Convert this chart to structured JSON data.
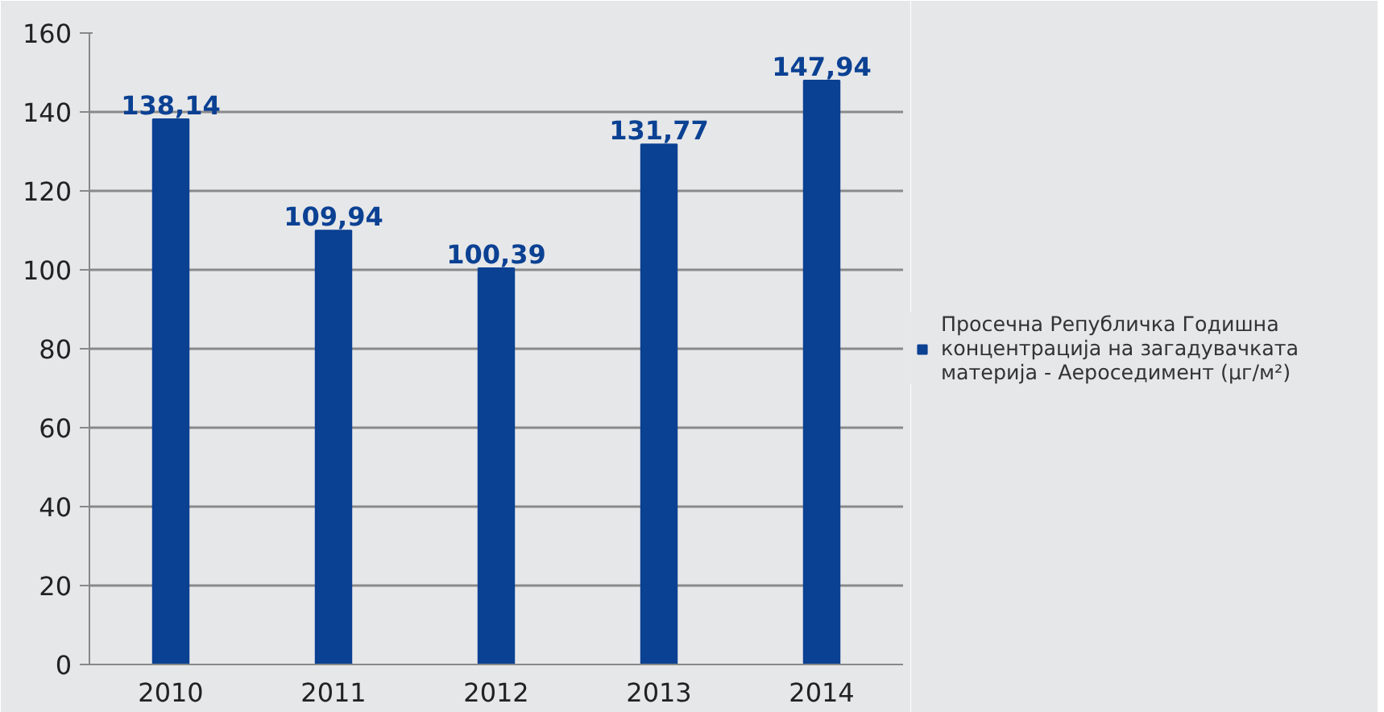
{
  "chart_data": {
    "type": "bar",
    "categories": [
      "2010",
      "2011",
      "2012",
      "2013",
      "2014"
    ],
    "series": [
      {
        "name": "Просечна Републичка Годишна концентрација на загадувачката материја - Аероседимент (μг/м²)",
        "color": "#0b4193",
        "values": [
          138.14,
          109.94,
          100.39,
          131.77,
          147.94
        ],
        "value_labels": [
          "138,14",
          "109,94",
          "100,39",
          "131,77",
          "147,94"
        ]
      }
    ],
    "ylim": [
      0,
      160
    ],
    "yticks": [
      0,
      20,
      40,
      60,
      80,
      100,
      120,
      140,
      160
    ],
    "grid": "y",
    "legend": "right"
  }
}
